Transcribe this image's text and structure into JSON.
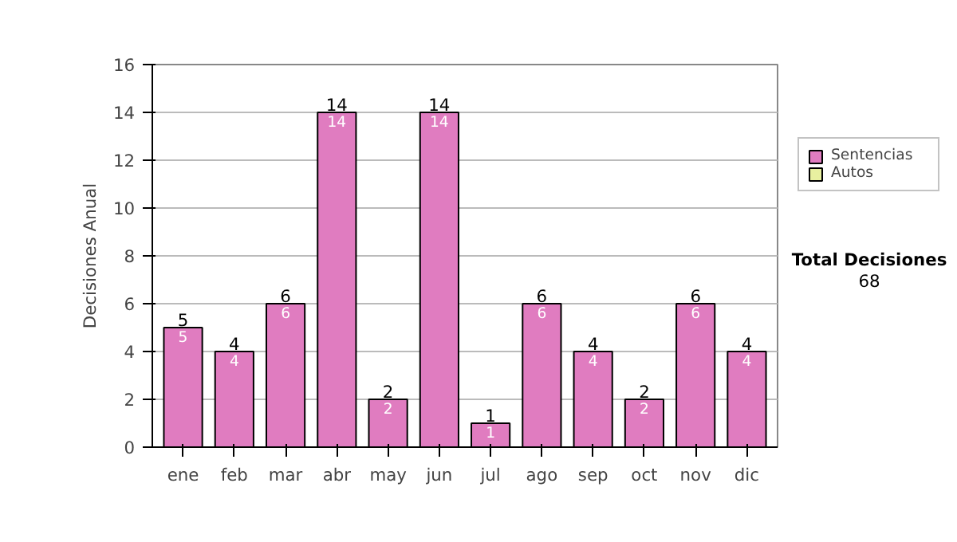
{
  "chart_data": {
    "type": "bar",
    "ylabel": "Decisiones Anual",
    "categories": [
      "ene",
      "feb",
      "mar",
      "abr",
      "may",
      "jun",
      "jul",
      "ago",
      "sep",
      "oct",
      "nov",
      "dic"
    ],
    "series": [
      {
        "name": "Sentencias",
        "color": "#e07cc0",
        "values": [
          5,
          4,
          6,
          14,
          2,
          14,
          1,
          6,
          4,
          2,
          6,
          4
        ]
      },
      {
        "name": "Autos",
        "color": "#e8f0a0",
        "values": [
          null,
          null,
          null,
          null,
          null,
          null,
          null,
          null,
          null,
          null,
          null,
          null
        ]
      }
    ],
    "stacked": true,
    "data_labels": true,
    "totals": [
      "5",
      "4",
      "6",
      "14",
      "2",
      "14",
      "1",
      "6",
      "4",
      "2",
      "6",
      "4"
    ],
    "ylim": [
      0,
      16
    ],
    "yticks": [
      0,
      2,
      4,
      6,
      8,
      10,
      12,
      14,
      16
    ],
    "grid": "y",
    "legend": "right",
    "annotations": [
      "Total Decisiones",
      "68"
    ]
  }
}
